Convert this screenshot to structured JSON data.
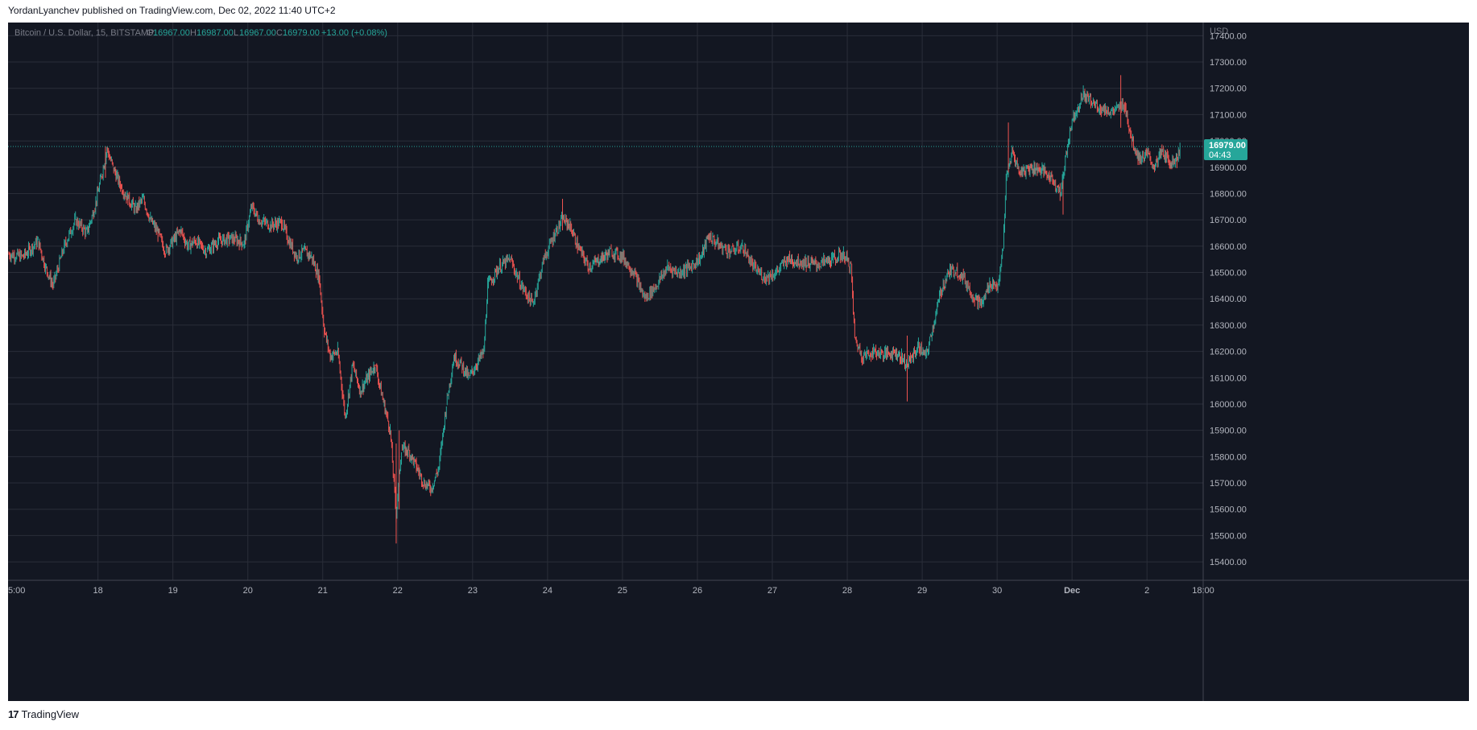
{
  "header": {
    "published_line": "YordanLyanchev published on TradingView.com, Dec 02, 2022 11:40 UTC+2"
  },
  "legend": {
    "symbol": "Bitcoin / U.S. Dollar, 15, BITSTAMP",
    "o_label": "O",
    "o_value": "16967.00",
    "h_label": "H",
    "h_value": "16987.00",
    "l_label": "L",
    "l_value": "16967.00",
    "c_label": "C",
    "c_value": "16979.00",
    "change": "+13.00 (+0.08%)"
  },
  "price_axis": {
    "currency": "USD",
    "ticks": [
      "17400.00",
      "17300.00",
      "17200.00",
      "17100.00",
      "17000.00",
      "16900.00",
      "16800.00",
      "16700.00",
      "16600.00",
      "16500.00",
      "16400.00",
      "16300.00",
      "16200.00",
      "16100.00",
      "16000.00",
      "15900.00",
      "15800.00",
      "15700.00",
      "15600.00",
      "15500.00",
      "15400.00"
    ],
    "last_price": "16979.00",
    "countdown": "04:43"
  },
  "time_axis": {
    "ticks": [
      "5:00",
      "18",
      "19",
      "20",
      "21",
      "22",
      "23",
      "24",
      "25",
      "26",
      "27",
      "28",
      "29",
      "30",
      "Dec",
      "2",
      "18:00"
    ]
  },
  "footer": {
    "brand": "TradingView",
    "logo_glyph": "17"
  },
  "colors": {
    "background": "#131722",
    "grid": "#2a2e39",
    "text": "#b2b5be",
    "up": "#26a69a",
    "down": "#ef5350",
    "last_price_bg": "#26a69a"
  },
  "chart_data": {
    "type": "line",
    "title": "Bitcoin / U.S. Dollar, 15, BITSTAMP",
    "interval": "15",
    "xlabel": "",
    "ylabel": "",
    "ylim": [
      15330,
      17450
    ],
    "x_units": "day index from Nov 17, 2022 00:00 (local UTC+2)",
    "x_range": [
      16.8,
      32.75
    ],
    "last": {
      "x": 31.44,
      "open": 16967.0,
      "high": 16987.0,
      "low": 16967.0,
      "close": 16979.0
    },
    "series": [
      {
        "values": [
          [
            16.8,
            16570
          ],
          [
            17.0,
            16560
          ],
          [
            17.2,
            16620
          ],
          [
            17.3,
            16520
          ],
          [
            17.4,
            16450
          ],
          [
            17.55,
            16600
          ],
          [
            17.7,
            16700
          ],
          [
            17.85,
            16650
          ],
          [
            17.95,
            16740
          ],
          [
            18.05,
            16870
          ],
          [
            18.12,
            16970
          ],
          [
            18.2,
            16900
          ],
          [
            18.3,
            16830
          ],
          [
            18.4,
            16780
          ],
          [
            18.5,
            16740
          ],
          [
            18.6,
            16780
          ],
          [
            18.7,
            16700
          ],
          [
            18.8,
            16650
          ],
          [
            18.9,
            16580
          ],
          [
            19.0,
            16620
          ],
          [
            19.1,
            16660
          ],
          [
            19.2,
            16600
          ],
          [
            19.3,
            16620
          ],
          [
            19.45,
            16580
          ],
          [
            19.6,
            16620
          ],
          [
            19.8,
            16630
          ],
          [
            19.95,
            16610
          ],
          [
            20.05,
            16750
          ],
          [
            20.15,
            16700
          ],
          [
            20.3,
            16680
          ],
          [
            20.45,
            16690
          ],
          [
            20.55,
            16620
          ],
          [
            20.65,
            16560
          ],
          [
            20.75,
            16580
          ],
          [
            20.85,
            16560
          ],
          [
            20.95,
            16480
          ],
          [
            21.02,
            16280
          ],
          [
            21.1,
            16180
          ],
          [
            21.2,
            16200
          ],
          [
            21.3,
            15950
          ],
          [
            21.4,
            16150
          ],
          [
            21.5,
            16050
          ],
          [
            21.6,
            16100
          ],
          [
            21.7,
            16150
          ],
          [
            21.8,
            16020
          ],
          [
            21.9,
            15900
          ],
          [
            21.98,
            15580
          ],
          [
            22.05,
            15830
          ],
          [
            22.15,
            15820
          ],
          [
            22.25,
            15760
          ],
          [
            22.35,
            15700
          ],
          [
            22.45,
            15680
          ],
          [
            22.55,
            15760
          ],
          [
            22.65,
            16000
          ],
          [
            22.75,
            16180
          ],
          [
            22.85,
            16150
          ],
          [
            22.95,
            16100
          ],
          [
            23.05,
            16150
          ],
          [
            23.15,
            16200
          ],
          [
            23.2,
            16450
          ],
          [
            23.35,
            16520
          ],
          [
            23.5,
            16550
          ],
          [
            23.65,
            16450
          ],
          [
            23.8,
            16380
          ],
          [
            23.95,
            16550
          ],
          [
            24.1,
            16650
          ],
          [
            24.2,
            16700
          ],
          [
            24.3,
            16680
          ],
          [
            24.4,
            16600
          ],
          [
            24.55,
            16520
          ],
          [
            24.7,
            16550
          ],
          [
            24.85,
            16580
          ],
          [
            25.0,
            16560
          ],
          [
            25.15,
            16500
          ],
          [
            25.3,
            16400
          ],
          [
            25.45,
            16450
          ],
          [
            25.6,
            16520
          ],
          [
            25.75,
            16500
          ],
          [
            25.9,
            16520
          ],
          [
            26.05,
            16560
          ],
          [
            26.15,
            16640
          ],
          [
            26.3,
            16600
          ],
          [
            26.45,
            16580
          ],
          [
            26.6,
            16600
          ],
          [
            26.75,
            16520
          ],
          [
            26.9,
            16480
          ],
          [
            27.05,
            16500
          ],
          [
            27.2,
            16550
          ],
          [
            27.4,
            16540
          ],
          [
            27.6,
            16530
          ],
          [
            27.8,
            16550
          ],
          [
            27.95,
            16570
          ],
          [
            28.05,
            16520
          ],
          [
            28.1,
            16250
          ],
          [
            28.2,
            16180
          ],
          [
            28.35,
            16200
          ],
          [
            28.5,
            16190
          ],
          [
            28.65,
            16200
          ],
          [
            28.8,
            16150
          ],
          [
            28.95,
            16220
          ],
          [
            29.05,
            16180
          ],
          [
            29.15,
            16300
          ],
          [
            29.25,
            16430
          ],
          [
            29.35,
            16500
          ],
          [
            29.45,
            16510
          ],
          [
            29.55,
            16480
          ],
          [
            29.7,
            16400
          ],
          [
            29.8,
            16380
          ],
          [
            29.9,
            16460
          ],
          [
            30.02,
            16450
          ],
          [
            30.08,
            16600
          ],
          [
            30.12,
            16850
          ],
          [
            30.2,
            16960
          ],
          [
            30.3,
            16880
          ],
          [
            30.45,
            16900
          ],
          [
            30.6,
            16890
          ],
          [
            30.75,
            16850
          ],
          [
            30.85,
            16800
          ],
          [
            30.92,
            16950
          ],
          [
            31.0,
            17080
          ],
          [
            31.08,
            17130
          ],
          [
            31.15,
            17180
          ],
          [
            31.25,
            17150
          ],
          [
            31.4,
            17120
          ],
          [
            31.55,
            17110
          ],
          [
            31.7,
            17140
          ],
          [
            31.8,
            17000
          ],
          [
            31.9,
            16930
          ],
          [
            32.0,
            16950
          ],
          [
            32.1,
            16900
          ],
          [
            32.2,
            16960
          ],
          [
            32.3,
            16920
          ],
          [
            32.4,
            16930
          ],
          [
            32.44,
            16979
          ]
        ]
      }
    ],
    "spikes": [
      {
        "x": 21.98,
        "low": 15470,
        "high": 15850
      },
      {
        "x": 22.02,
        "low": 15600,
        "high": 15900
      },
      {
        "x": 28.8,
        "low": 16010,
        "high": 16260
      },
      {
        "x": 31.65,
        "low": 17050,
        "high": 17250
      },
      {
        "x": 30.15,
        "low": 16880,
        "high": 17070
      },
      {
        "x": 18.1,
        "low": 16860,
        "high": 16980
      },
      {
        "x": 24.2,
        "low": 16660,
        "high": 16780
      },
      {
        "x": 30.88,
        "low": 16720,
        "high": 16850
      }
    ]
  }
}
